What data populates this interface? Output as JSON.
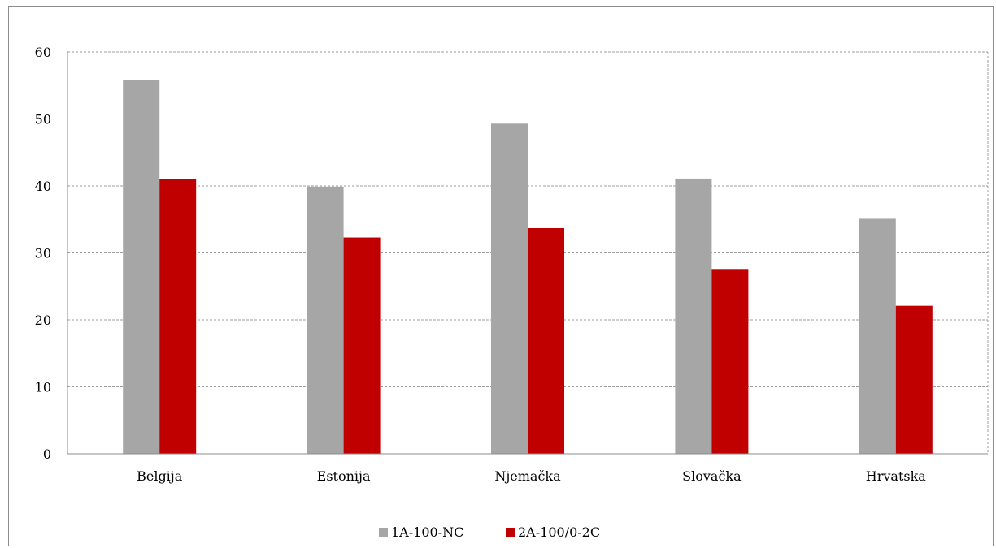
{
  "chart_data": {
    "type": "bar",
    "title": "",
    "xlabel": "",
    "ylabel": "",
    "categories": [
      "Belgija",
      "Estonija",
      "Njemačka",
      "Slovačka",
      "Hrvatska"
    ],
    "series": [
      {
        "name": "1A-100-NC",
        "values": [
          55.8,
          39.9,
          49.3,
          41.1,
          35.1
        ],
        "color": "#a6a6a6"
      },
      {
        "name": "2A-100/0-2C",
        "values": [
          41.0,
          32.3,
          33.7,
          27.6,
          22.1
        ],
        "color": "#c00000"
      }
    ],
    "ylim": [
      0,
      60
    ],
    "yticks": [
      0,
      10,
      20,
      30,
      40,
      50,
      60
    ],
    "grid": true,
    "legend_position": "bottom"
  }
}
